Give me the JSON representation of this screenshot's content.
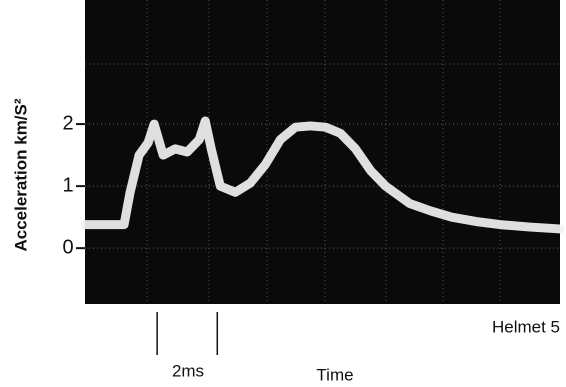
{
  "chart_data": {
    "type": "line",
    "y_label": "Acceleration km/S²",
    "series_label": "Helmet 5",
    "x_label": "Time",
    "scale_bar": {
      "label": "2ms",
      "x": [
        2.4,
        4.4
      ]
    },
    "x": [
      0,
      1.3,
      1.5,
      1.8,
      2.1,
      2.3,
      2.6,
      3.0,
      3.4,
      3.8,
      4.0,
      4.2,
      4.5,
      5.0,
      5.5,
      6.0,
      6.5,
      7.0,
      7.5,
      8.0,
      8.5,
      9.0,
      9.5,
      10.0,
      10.8,
      11.5,
      12.2,
      13.0,
      13.8,
      14.8,
      15.8
    ],
    "series": [
      {
        "name": "Helmet 5",
        "color": "#f2f2f2",
        "values": [
          0.38,
          0.38,
          0.9,
          1.5,
          1.7,
          2.0,
          1.5,
          1.6,
          1.55,
          1.75,
          2.05,
          1.6,
          1.0,
          0.9,
          1.05,
          1.35,
          1.75,
          1.95,
          1.97,
          1.95,
          1.85,
          1.6,
          1.25,
          1.0,
          0.72,
          0.6,
          0.5,
          0.43,
          0.38,
          0.34,
          0.31
        ]
      }
    ],
    "xlim": [
      0,
      15.8
    ],
    "ylim": [
      -0.9,
      4
    ],
    "yticks": [
      0,
      1,
      2
    ],
    "grid": true
  }
}
